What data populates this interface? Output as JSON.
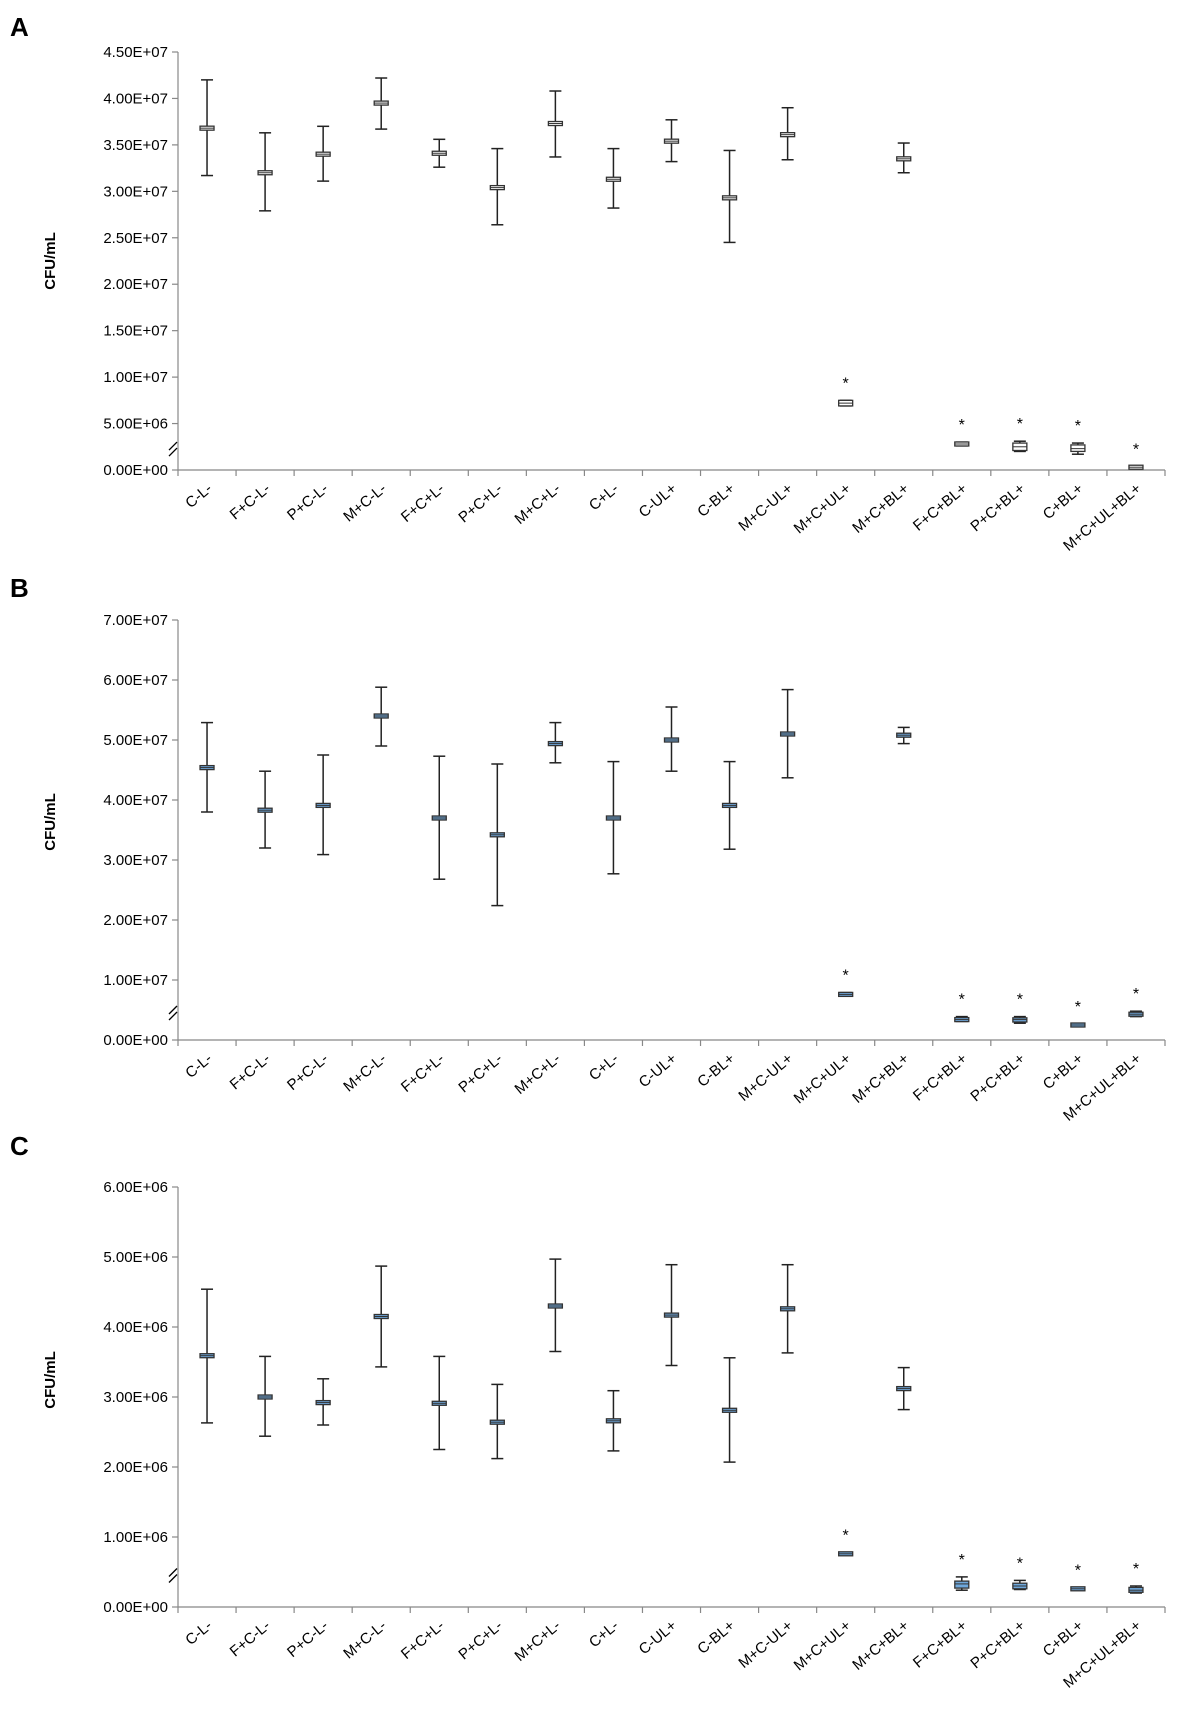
{
  "colors": {
    "panel_a_box": "#ffffff",
    "panel_bc_box": "#6fa8dc",
    "box_edge": "#333333",
    "axis": "#888888"
  },
  "chart_data": [
    {
      "type": "box",
      "panel": "A",
      "ylabel": "CFU/mL",
      "ylim": [
        0,
        45000000
      ],
      "y_ticks": [
        "0.00E+00",
        "5.00E+06",
        "1.00E+07",
        "1.50E+07",
        "2.00E+07",
        "2.50E+07",
        "3.00E+07",
        "3.50E+07",
        "4.00E+07",
        "4.50E+07"
      ],
      "axis_break": true,
      "categories": [
        "C-L-",
        "F+C-L-",
        "P+C-L-",
        "M+C-L-",
        "F+C+L-",
        "P+C+L-",
        "M+C+L-",
        "C+L-",
        "C-UL+",
        "C-BL+",
        "M+C-UL+",
        "M+C+UL+",
        "M+C+BL+",
        "F+C+BL+",
        "P+C+BL+",
        "C+BL+",
        "M+C+UL+BL+"
      ],
      "median": [
        36800000,
        32000000,
        34000000,
        39500000,
        34100000,
        30400000,
        37300000,
        31300000,
        35400000,
        29300000,
        36100000,
        7200000,
        33500000,
        2800000,
        2500000,
        2300000,
        300000
      ],
      "box_low": [
        36600000,
        31900000,
        33800000,
        39300000,
        33900000,
        30200000,
        37100000,
        31200000,
        35200000,
        29100000,
        35900000,
        6900000,
        33300000,
        2600000,
        2100000,
        2000000,
        200000
      ],
      "box_high": [
        37000000,
        32100000,
        34200000,
        39700000,
        34300000,
        30600000,
        37500000,
        31400000,
        35600000,
        29500000,
        36300000,
        7500000,
        33700000,
        3000000,
        2900000,
        2700000,
        400000
      ],
      "min": [
        31700000,
        27900000,
        31100000,
        36700000,
        32600000,
        26400000,
        33700000,
        28200000,
        33200000,
        24500000,
        33400000,
        6900000,
        32000000,
        2600000,
        2000000,
        1700000,
        200000
      ],
      "max": [
        42000000,
        36300000,
        37000000,
        42200000,
        35600000,
        34600000,
        40800000,
        34600000,
        37700000,
        34400000,
        39000000,
        7500000,
        35200000,
        3000000,
        3100000,
        2900000,
        400000
      ],
      "significant": [
        false,
        false,
        false,
        false,
        false,
        false,
        false,
        false,
        false,
        false,
        false,
        true,
        false,
        true,
        true,
        true,
        true
      ],
      "star_label": "*"
    },
    {
      "type": "box",
      "panel": "B",
      "ylabel": "CFU/mL",
      "ylim": [
        0,
        70000000
      ],
      "y_ticks": [
        "0.00E+00",
        "1.00E+07",
        "2.00E+07",
        "3.00E+07",
        "4.00E+07",
        "5.00E+07",
        "6.00E+07",
        "7.00E+07"
      ],
      "axis_break": true,
      "categories": [
        "C-L-",
        "F+C-L-",
        "P+C-L-",
        "M+C-L-",
        "F+C+L-",
        "P+C+L-",
        "M+C+L-",
        "C+L-",
        "C-UL+",
        "C-BL+",
        "M+C-UL+",
        "M+C+UL+",
        "M+C+BL+",
        "F+C+BL+",
        "P+C+BL+",
        "C+BL+",
        "M+C+UL+BL+"
      ],
      "median": [
        45400000,
        38300000,
        39100000,
        54000000,
        37000000,
        34200000,
        49400000,
        37000000,
        50000000,
        39100000,
        51000000,
        7600000,
        50800000,
        3400000,
        3400000,
        2500000,
        4300000
      ],
      "box_low": [
        45200000,
        38100000,
        38900000,
        53800000,
        36800000,
        34000000,
        49200000,
        36800000,
        49800000,
        38900000,
        50800000,
        7300000,
        50600000,
        3100000,
        3000000,
        2400000,
        4000000
      ],
      "box_high": [
        45600000,
        38500000,
        39300000,
        54200000,
        37200000,
        34400000,
        49600000,
        37200000,
        50200000,
        39300000,
        51200000,
        7900000,
        51000000,
        3700000,
        3700000,
        2600000,
        4600000
      ],
      "min": [
        38000000,
        32000000,
        30900000,
        49000000,
        26800000,
        22400000,
        46200000,
        27700000,
        44800000,
        31800000,
        43700000,
        7300000,
        49400000,
        3100000,
        2800000,
        2300000,
        3900000
      ],
      "max": [
        52900000,
        44800000,
        47500000,
        58800000,
        47300000,
        46000000,
        52900000,
        46400000,
        55500000,
        46400000,
        58400000,
        7900000,
        52100000,
        3900000,
        3900000,
        2700000,
        4800000
      ],
      "significant": [
        false,
        false,
        false,
        false,
        false,
        false,
        false,
        false,
        false,
        false,
        false,
        true,
        false,
        true,
        true,
        true,
        true
      ],
      "star_label": "*"
    },
    {
      "type": "box",
      "panel": "C",
      "ylabel": "CFU/mL",
      "ylim": [
        0,
        6000000
      ],
      "y_ticks": [
        "0.00E+00",
        "1.00E+06",
        "2.00E+06",
        "3.00E+06",
        "4.00E+06",
        "5.00E+06",
        "6.00E+06"
      ],
      "axis_break": true,
      "categories": [
        "C-L-",
        "F+C-L-",
        "P+C-L-",
        "M+C-L-",
        "F+C+L-",
        "P+C+L-",
        "M+C+L-",
        "C+L-",
        "C-UL+",
        "C-BL+",
        "M+C-UL+",
        "M+C+UL+",
        "M+C+BL+",
        "F+C+BL+",
        "P+C+BL+",
        "C+BL+",
        "M+C+UL+BL+"
      ],
      "median": [
        3590000,
        3000000,
        2920000,
        4150000,
        2910000,
        2640000,
        4300000,
        2660000,
        4170000,
        2810000,
        4260000,
        760000,
        3120000,
        330000,
        300000,
        260000,
        240000
      ],
      "box_low": [
        3570000,
        2980000,
        2900000,
        4130000,
        2890000,
        2620000,
        4280000,
        2640000,
        4150000,
        2790000,
        4240000,
        740000,
        3100000,
        270000,
        260000,
        250000,
        210000
      ],
      "box_high": [
        3610000,
        3020000,
        2940000,
        4170000,
        2930000,
        2660000,
        4320000,
        2680000,
        4190000,
        2830000,
        4280000,
        780000,
        3140000,
        370000,
        340000,
        270000,
        280000
      ],
      "min": [
        2630000,
        2440000,
        2600000,
        3430000,
        2250000,
        2120000,
        3650000,
        2230000,
        3450000,
        2070000,
        3630000,
        740000,
        2820000,
        240000,
        250000,
        240000,
        200000
      ],
      "max": [
        4540000,
        3580000,
        3260000,
        4870000,
        3580000,
        3180000,
        4970000,
        3090000,
        4890000,
        3560000,
        4890000,
        780000,
        3420000,
        430000,
        380000,
        280000,
        300000
      ],
      "significant": [
        false,
        false,
        false,
        false,
        false,
        false,
        false,
        false,
        false,
        false,
        false,
        true,
        false,
        true,
        true,
        true,
        true
      ],
      "star_label": "*"
    }
  ]
}
